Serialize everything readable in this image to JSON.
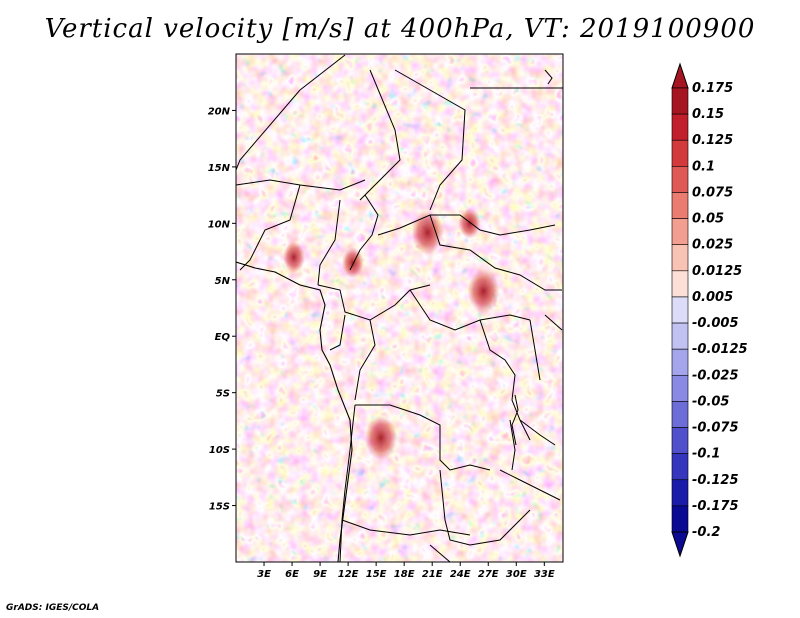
{
  "title": "Vertical velocity [m/s] at 400hPa, VT: 2019100900",
  "credit": "GrADS: IGES/COLA",
  "map": {
    "lon_labels": [
      "3E",
      "6E",
      "9E",
      "12E",
      "15E",
      "18E",
      "21E",
      "24E",
      "27E",
      "30E",
      "33E"
    ],
    "lat_labels": [
      "20N",
      "15N",
      "10N",
      "5N",
      "EQ",
      "5S",
      "10S",
      "15S"
    ],
    "lon_range": [
      0,
      35
    ],
    "lat_range": [
      -20,
      25
    ],
    "hotspots": [
      {
        "lon": 20.5,
        "lat": 9.2,
        "value": 0.15
      },
      {
        "lon": 26.5,
        "lat": 4.0,
        "value": 0.15
      },
      {
        "lon": 15.5,
        "lat": -9.0,
        "value": 0.15
      },
      {
        "lon": 6.2,
        "lat": 7.0,
        "value": 0.1
      },
      {
        "lon": 12.5,
        "lat": 6.5,
        "value": 0.1
      },
      {
        "lon": 25.0,
        "lat": 10.0,
        "value": 0.1
      }
    ]
  },
  "colorbar": {
    "labels": [
      "0.175",
      "0.15",
      "0.125",
      "0.1",
      "0.075",
      "0.05",
      "0.025",
      "0.0125",
      "0.005",
      "-0.005",
      "-0.0125",
      "-0.025",
      "-0.05",
      "-0.075",
      "-0.1",
      "-0.125",
      "-0.175",
      "-0.2"
    ],
    "colors": [
      "#a51622",
      "#c01f2b",
      "#d33a3c",
      "#e05a55",
      "#ea7c72",
      "#f29e90",
      "#f8c2b4",
      "#fce0d8",
      "#ffffff",
      "#dcdcf8",
      "#c2c2f2",
      "#a5a5ec",
      "#8a8ae4",
      "#6d6dd8",
      "#5050cc",
      "#3535bd",
      "#1c1cab",
      "#0a0a92"
    ],
    "top_color": "#a51622",
    "bottom_color": "#0a0a92"
  }
}
